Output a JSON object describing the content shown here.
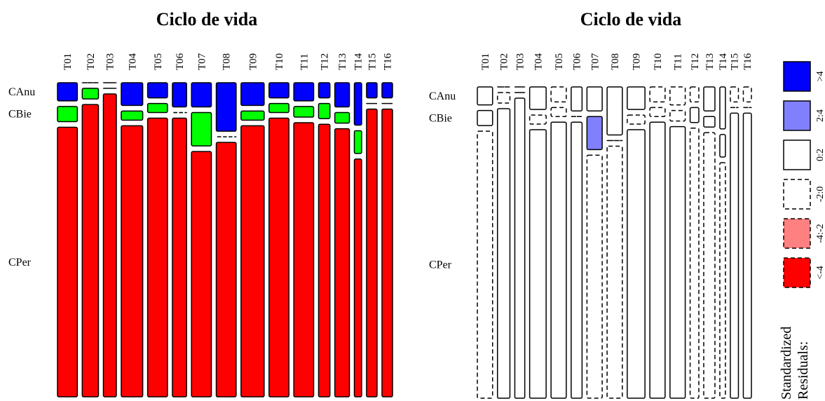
{
  "chart_data": [
    {
      "type": "mosaic",
      "title": "Ciclo de vida",
      "columns": [
        "T01",
        "T02",
        "T03",
        "T04",
        "T05",
        "T06",
        "T07",
        "T08",
        "T09",
        "T10",
        "T11",
        "T12",
        "T13",
        "T14",
        "T15",
        "T16"
      ],
      "rows": [
        "CAnu",
        "CBie",
        "CPer"
      ],
      "row_colors": {
        "CAnu": "#0000ff",
        "CBie": "#00ff00",
        "CPer": "#ff0000"
      },
      "column_widths": [
        0.049,
        0.04,
        0.032,
        0.053,
        0.049,
        0.035,
        0.049,
        0.049,
        0.057,
        0.049,
        0.049,
        0.028,
        0.036,
        0.018,
        0.026,
        0.026
      ],
      "proportions": {
        "CAnu": [
          0.06,
          0.0,
          0.0,
          0.075,
          0.05,
          0.08,
          0.08,
          0.16,
          0.075,
          0.05,
          0.06,
          0.05,
          0.08,
          0.14,
          0.05,
          0.05
        ],
        "CBie": [
          0.05,
          0.035,
          0.0,
          0.03,
          0.03,
          0.0,
          0.11,
          0.0,
          0.03,
          0.03,
          0.035,
          0.05,
          0.035,
          0.075,
          0.0,
          0.0
        ],
        "CPer": [
          0.89,
          0.965,
          1.0,
          0.895,
          0.92,
          0.92,
          0.81,
          0.84,
          0.895,
          0.92,
          0.905,
          0.9,
          0.885,
          0.785,
          0.95,
          0.95
        ]
      }
    },
    {
      "type": "mosaic",
      "title": "Ciclo de vida",
      "shading": "standardized residuals",
      "residual_classes": {
        "CAnu": [
          "0:2",
          "-2:0",
          "-2:0",
          "0:2",
          "-2:0",
          "0:2",
          "0:2",
          "0:2",
          "0:2",
          "-2:0",
          "-2:0",
          "-2:0",
          "0:2",
          "0:2",
          "-2:0",
          "-2:0"
        ],
        "CBie": [
          "0:2",
          "-2:0",
          "-2:0",
          "-2:0",
          "-2:0",
          "-2:0",
          "2:4",
          "-2:0",
          "-2:0",
          "-2:0",
          "-2:0",
          "0:2",
          "0:2",
          "0:2",
          "-2:0",
          "-2:0"
        ],
        "CPer": [
          "-2:0",
          "0:2",
          "0:2",
          "0:2",
          "0:2",
          "0:2",
          "-2:0",
          "-2:0",
          "0:2",
          "0:2",
          "0:2",
          "-2:0",
          "-2:0",
          "-2:0",
          "0:2",
          "0:2"
        ]
      }
    }
  ],
  "legend": {
    "title_line1": "Standardized",
    "title_line2": "Residuals:",
    "items": [
      {
        "label": ">4",
        "fill": "#0000ff",
        "dashed": false
      },
      {
        "label": "2:4",
        "fill": "#8080ff",
        "dashed": false
      },
      {
        "label": "0:2",
        "fill": "#ffffff",
        "dashed": false
      },
      {
        "label": "-2:0",
        "fill": "#ffffff",
        "dashed": true
      },
      {
        "label": "-4:-2",
        "fill": "#ff8080",
        "dashed": true
      },
      {
        "label": "<-4",
        "fill": "#ff0000",
        "dashed": true
      }
    ]
  }
}
